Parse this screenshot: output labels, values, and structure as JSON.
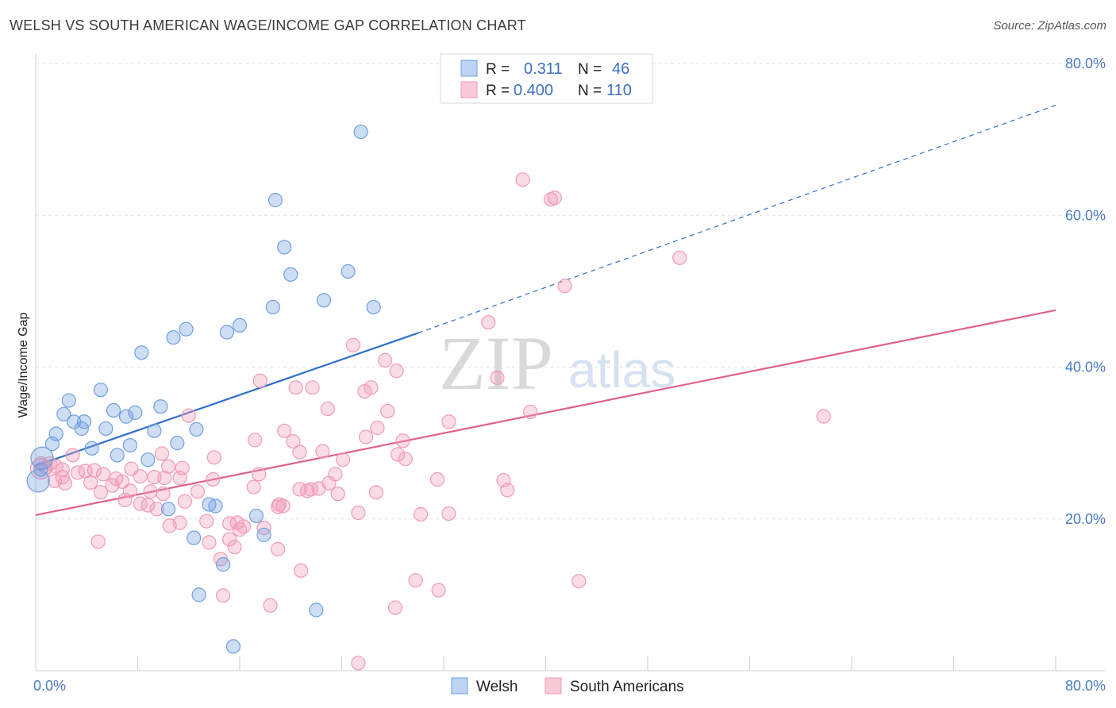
{
  "title": "WELSH VS SOUTH AMERICAN WAGE/INCOME GAP CORRELATION CHART",
  "source": "Source: ZipAtlas.com",
  "watermark": {
    "zip": "ZIP",
    "atlas": "atlas"
  },
  "chart_data": {
    "type": "scatter",
    "title": "WELSH VS SOUTH AMERICAN WAGE/INCOME GAP CORRELATION CHART",
    "xlabel": "",
    "ylabel": "Wage/Income Gap",
    "xlim": [
      0,
      80
    ],
    "ylim": [
      0,
      80
    ],
    "x_tick_labels": [
      {
        "value": 0,
        "label": "0.0%"
      },
      {
        "value": 80,
        "label": "80.0%"
      }
    ],
    "y_tick_labels": [
      {
        "value": 20,
        "label": "20.0%"
      },
      {
        "value": 40,
        "label": "40.0%"
      },
      {
        "value": 60,
        "label": "60.0%"
      },
      {
        "value": 80,
        "label": "80.0%"
      }
    ],
    "grid": true,
    "legend_position": "top-center",
    "legend": [
      {
        "series": "Welsh",
        "r_label": "R =",
        "r": "0.311",
        "n_label": "N =",
        "n": "46"
      },
      {
        "series": "South Americans",
        "r_label": "R =",
        "r": "0.400",
        "n_label": "N =",
        "n": "110"
      }
    ],
    "bottom_legend": [
      "Welsh",
      "South Americans"
    ],
    "colors": {
      "Welsh": "#6f9fe0",
      "South Americans": "#f09bb5",
      "welsh_line": "#2f6fcc",
      "sa_line": "#e0608e"
    },
    "trend_lines": [
      {
        "series": "Welsh",
        "x_start": 0,
        "y_start": 27,
        "x_solid_end": 30,
        "y_solid_end": 44.5,
        "x_dash_end": 80,
        "y_dash_end": 74.5
      },
      {
        "series": "South Americans",
        "x_start": 0,
        "y_start": 20.5,
        "x_end": 80,
        "y_end": 47.5
      }
    ],
    "series": [
      {
        "name": "Welsh",
        "points": [
          [
            25.5,
            71
          ],
          [
            18.8,
            62
          ],
          [
            19.5,
            55.8
          ],
          [
            20.0,
            52.2
          ],
          [
            24.5,
            52.6
          ],
          [
            22.6,
            48.8
          ],
          [
            18.6,
            47.9
          ],
          [
            26.5,
            47.9
          ],
          [
            16.0,
            45.5
          ],
          [
            15.0,
            44.6
          ],
          [
            11.8,
            45.0
          ],
          [
            10.8,
            43.9
          ],
          [
            8.3,
            41.9
          ],
          [
            5.1,
            37.0
          ],
          [
            2.6,
            35.6
          ],
          [
            2.2,
            33.8
          ],
          [
            6.1,
            34.3
          ],
          [
            7.1,
            33.5
          ],
          [
            7.8,
            34.0
          ],
          [
            9.8,
            34.8
          ],
          [
            3.0,
            32.8
          ],
          [
            3.8,
            32.8
          ],
          [
            3.6,
            31.9
          ],
          [
            5.5,
            31.9
          ],
          [
            1.6,
            31.2
          ],
          [
            9.3,
            31.6
          ],
          [
            12.6,
            31.8
          ],
          [
            1.3,
            29.9
          ],
          [
            4.4,
            29.3
          ],
          [
            7.4,
            29.7
          ],
          [
            6.4,
            28.4
          ],
          [
            11.1,
            30.0
          ],
          [
            8.8,
            27.8
          ],
          [
            0.5,
            28.0
          ],
          [
            0.4,
            26.5
          ],
          [
            0.2,
            25.0
          ],
          [
            13.6,
            21.9
          ],
          [
            14.1,
            21.7
          ],
          [
            10.4,
            21.3
          ],
          [
            17.3,
            20.4
          ],
          [
            12.4,
            17.5
          ],
          [
            17.9,
            17.9
          ],
          [
            14.7,
            14.0
          ],
          [
            12.8,
            10.0
          ],
          [
            22.0,
            8.0
          ],
          [
            15.5,
            3.2
          ]
        ]
      },
      {
        "name": "South Americans",
        "points": [
          [
            38.2,
            64.7
          ],
          [
            40.4,
            62.1
          ],
          [
            40.7,
            62.3
          ],
          [
            50.5,
            54.4
          ],
          [
            41.5,
            50.7
          ],
          [
            35.5,
            45.9
          ],
          [
            24.9,
            42.9
          ],
          [
            27.4,
            40.9
          ],
          [
            28.3,
            39.5
          ],
          [
            36.2,
            38.6
          ],
          [
            17.6,
            38.2
          ],
          [
            20.4,
            37.3
          ],
          [
            21.7,
            37.3
          ],
          [
            25.8,
            36.8
          ],
          [
            26.3,
            37.3
          ],
          [
            22.9,
            34.5
          ],
          [
            27.6,
            34.2
          ],
          [
            38.8,
            34.1
          ],
          [
            12.0,
            33.6
          ],
          [
            61.8,
            33.5
          ],
          [
            32.4,
            32.8
          ],
          [
            19.5,
            31.6
          ],
          [
            26.8,
            32.0
          ],
          [
            25.9,
            30.8
          ],
          [
            17.2,
            30.4
          ],
          [
            20.2,
            30.2
          ],
          [
            28.8,
            30.3
          ],
          [
            22.5,
            28.9
          ],
          [
            20.7,
            28.8
          ],
          [
            28.4,
            28.5
          ],
          [
            29.0,
            27.9
          ],
          [
            9.9,
            28.6
          ],
          [
            2.9,
            28.4
          ],
          [
            14.0,
            28.1
          ],
          [
            24.1,
            27.8
          ],
          [
            0.4,
            27.3
          ],
          [
            1.1,
            27.3
          ],
          [
            1.6,
            26.9
          ],
          [
            0.8,
            26.8
          ],
          [
            2.1,
            26.5
          ],
          [
            3.3,
            26.1
          ],
          [
            3.9,
            26.3
          ],
          [
            4.6,
            26.4
          ],
          [
            11.5,
            26.7
          ],
          [
            10.4,
            26.9
          ],
          [
            7.5,
            26.6
          ],
          [
            9.3,
            25.5
          ],
          [
            8.2,
            25.6
          ],
          [
            6.3,
            25.3
          ],
          [
            6.8,
            24.9
          ],
          [
            5.3,
            25.9
          ],
          [
            2.1,
            25.5
          ],
          [
            1.5,
            25.0
          ],
          [
            2.3,
            24.7
          ],
          [
            4.3,
            24.8
          ],
          [
            5.1,
            23.5
          ],
          [
            6.0,
            24.4
          ],
          [
            7.4,
            23.7
          ],
          [
            11.3,
            25.4
          ],
          [
            13.9,
            25.2
          ],
          [
            17.5,
            25.9
          ],
          [
            23.5,
            25.9
          ],
          [
            23.0,
            24.7
          ],
          [
            22.2,
            24.0
          ],
          [
            21.3,
            23.7
          ],
          [
            20.7,
            23.9
          ],
          [
            23.7,
            23.3
          ],
          [
            26.7,
            23.5
          ],
          [
            31.5,
            25.2
          ],
          [
            36.7,
            25.1
          ],
          [
            37.0,
            23.8
          ],
          [
            17.1,
            24.2
          ],
          [
            12.7,
            23.6
          ],
          [
            10.0,
            23.3
          ],
          [
            11.7,
            22.3
          ],
          [
            8.2,
            22.0
          ],
          [
            7.0,
            22.5
          ],
          [
            8.8,
            21.8
          ],
          [
            9.5,
            21.3
          ],
          [
            19.0,
            21.6
          ],
          [
            19.4,
            21.7
          ],
          [
            25.3,
            20.8
          ],
          [
            30.2,
            20.6
          ],
          [
            32.4,
            20.7
          ],
          [
            15.2,
            19.4
          ],
          [
            15.8,
            19.5
          ],
          [
            10.5,
            19.1
          ],
          [
            11.3,
            19.5
          ],
          [
            13.4,
            19.7
          ],
          [
            16.3,
            19.0
          ],
          [
            16.0,
            18.6
          ],
          [
            17.9,
            18.8
          ],
          [
            4.9,
            17.0
          ],
          [
            13.6,
            16.9
          ],
          [
            15.6,
            16.3
          ],
          [
            14.5,
            14.7
          ],
          [
            19.0,
            16.0
          ],
          [
            20.8,
            13.2
          ],
          [
            29.8,
            11.9
          ],
          [
            42.6,
            11.8
          ],
          [
            31.6,
            10.6
          ],
          [
            14.7,
            9.9
          ],
          [
            18.4,
            8.6
          ],
          [
            28.2,
            8.3
          ],
          [
            25.3,
            1.0
          ],
          [
            19.1,
            21.9
          ],
          [
            10.1,
            25.4
          ],
          [
            9.0,
            23.6
          ],
          [
            21.6,
            23.9
          ],
          [
            15.2,
            17.3
          ]
        ]
      }
    ]
  }
}
